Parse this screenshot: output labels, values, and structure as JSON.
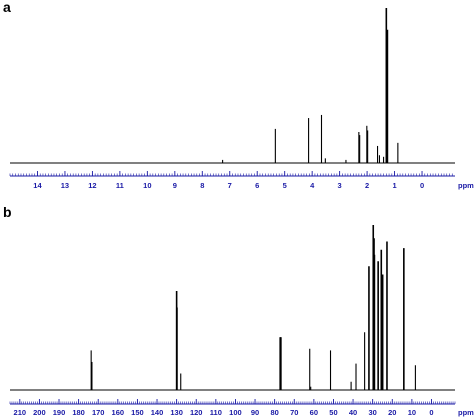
{
  "colors": {
    "spectrum": "#000000",
    "axis": "#1a1aa6"
  },
  "chart_data": [
    {
      "type": "line",
      "panel_label": "a",
      "xunit": "ppm",
      "xlim": [
        15,
        -1.2
      ],
      "x_reversed": true,
      "ticks": [
        14,
        13,
        12,
        11,
        10,
        9,
        8,
        7,
        6,
        5,
        4,
        3,
        2,
        1,
        0
      ],
      "tick_labels": [
        "14",
        "13",
        "12",
        "11",
        "10",
        "9",
        "8",
        "7",
        "6",
        "5",
        "4",
        "3",
        "2",
        "1",
        "0"
      ],
      "grid": false,
      "peaks": [
        {
          "x": 7.26,
          "y": 0.02
        },
        {
          "x": 5.34,
          "y": 0.22
        },
        {
          "x": 4.13,
          "y": 0.29
        },
        {
          "x": 3.66,
          "y": 0.31
        },
        {
          "x": 3.52,
          "y": 0.03
        },
        {
          "x": 2.77,
          "y": 0.02
        },
        {
          "x": 2.3,
          "y": 0.2
        },
        {
          "x": 2.27,
          "y": 0.18
        },
        {
          "x": 2.01,
          "y": 0.24
        },
        {
          "x": 1.98,
          "y": 0.21
        },
        {
          "x": 1.62,
          "y": 0.11
        },
        {
          "x": 1.55,
          "y": 0.05
        },
        {
          "x": 1.4,
          "y": 0.04
        },
        {
          "x": 1.3,
          "y": 1.0
        },
        {
          "x": 1.26,
          "y": 0.86
        },
        {
          "x": 0.88,
          "y": 0.13
        }
      ]
    },
    {
      "type": "line",
      "panel_label": "b",
      "xunit": "ppm",
      "xlim": [
        215,
        -12
      ],
      "x_reversed": true,
      "ticks": [
        210,
        200,
        190,
        180,
        170,
        160,
        150,
        140,
        130,
        120,
        110,
        100,
        90,
        80,
        70,
        60,
        50,
        40,
        30,
        20,
        10,
        0
      ],
      "tick_labels": [
        "210",
        "200",
        "190",
        "180",
        "170",
        "160",
        "150",
        "140",
        "130",
        "120",
        "110",
        "100",
        "90",
        "80",
        "70",
        "60",
        "50",
        "40",
        "30",
        "20",
        "10",
        "0"
      ],
      "grid": false,
      "peaks": [
        {
          "x": 173.6,
          "y": 0.24
        },
        {
          "x": 173.2,
          "y": 0.17
        },
        {
          "x": 130.0,
          "y": 0.6
        },
        {
          "x": 129.7,
          "y": 0.5
        },
        {
          "x": 127.9,
          "y": 0.1
        },
        {
          "x": 77.3,
          "y": 0.32
        },
        {
          "x": 77.0,
          "y": 0.32
        },
        {
          "x": 76.7,
          "y": 0.32
        },
        {
          "x": 62.1,
          "y": 0.25
        },
        {
          "x": 61.6,
          "y": 0.02
        },
        {
          "x": 51.5,
          "y": 0.24
        },
        {
          "x": 41.0,
          "y": 0.05
        },
        {
          "x": 38.5,
          "y": 0.16
        },
        {
          "x": 34.1,
          "y": 0.35
        },
        {
          "x": 31.9,
          "y": 0.75
        },
        {
          "x": 29.7,
          "y": 1.0
        },
        {
          "x": 29.3,
          "y": 0.92
        },
        {
          "x": 29.1,
          "y": 0.82
        },
        {
          "x": 27.2,
          "y": 0.78
        },
        {
          "x": 25.6,
          "y": 0.85
        },
        {
          "x": 24.9,
          "y": 0.7
        },
        {
          "x": 22.7,
          "y": 0.9
        },
        {
          "x": 14.1,
          "y": 0.86
        },
        {
          "x": 8.2,
          "y": 0.15
        }
      ]
    }
  ]
}
